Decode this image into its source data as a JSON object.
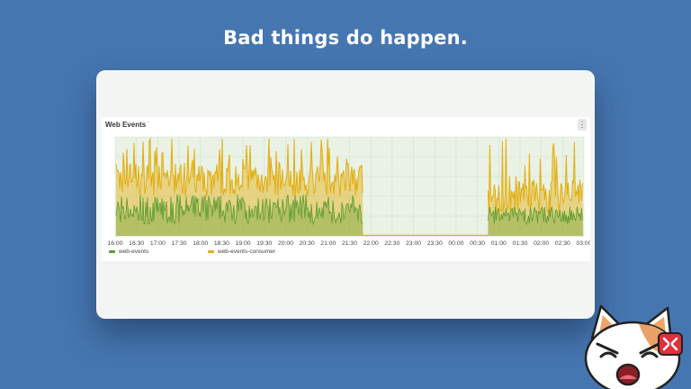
{
  "slide": {
    "headline": "Bad things do happen."
  },
  "panel": {
    "title": "Web Events",
    "info_mark": "'",
    "menu_glyph": "⋮"
  },
  "colors": {
    "background": "#4676b0",
    "web_events": "#5a9b32",
    "web_events_consumer": "#e3ad0e",
    "plot_bg": "#e9f2e4"
  },
  "chart_data": {
    "type": "area",
    "title": "Web Events",
    "x_ticks": [
      "16:00",
      "16:30",
      "17:00",
      "17:30",
      "18:00",
      "18:30",
      "19:00",
      "19:30",
      "20:00",
      "20:30",
      "21:00",
      "21:30",
      "22:00",
      "22:30",
      "23:00",
      "23:30",
      "00:00",
      "00:30",
      "01:00",
      "01:30",
      "02:00",
      "02:30",
      "03:00"
    ],
    "gap": {
      "from": "21:49",
      "to": "00:45"
    },
    "legend": {
      "position": "bottom-left"
    },
    "grid": true,
    "series": [
      {
        "name": "web-events",
        "color": "#5a9b32"
      },
      {
        "name": "web-events-consumer",
        "color": "#e3ad0e"
      }
    ]
  },
  "mascot": {
    "icon": "angry-cat-icon"
  }
}
